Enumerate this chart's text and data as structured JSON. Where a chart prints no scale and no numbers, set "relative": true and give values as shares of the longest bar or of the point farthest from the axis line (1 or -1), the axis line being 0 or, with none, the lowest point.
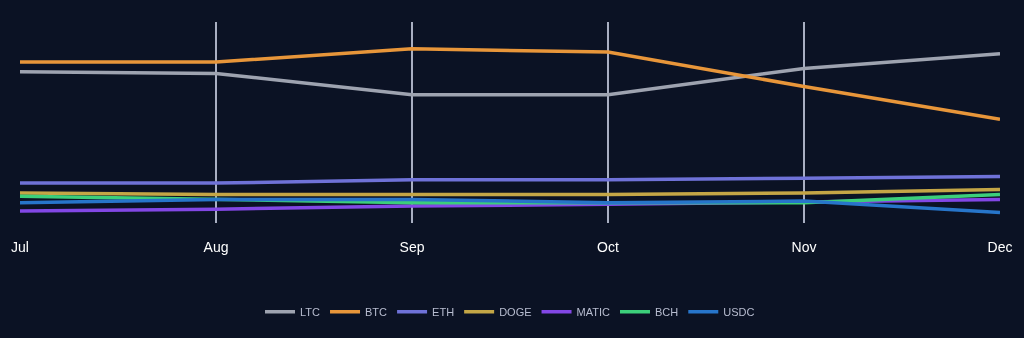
{
  "chart_data": {
    "type": "line",
    "relative": true,
    "categories": [
      "Jul",
      "Aug",
      "Sep",
      "Oct",
      "Nov",
      "Dec"
    ],
    "grid": "x",
    "legend": "bottom",
    "marker": "none",
    "line_style": "solid",
    "series": [
      {
        "name": "LTC",
        "color": "#9ea3b0",
        "values": [
          0.86,
          0.85,
          0.72,
          0.72,
          0.88,
          0.97
        ]
      },
      {
        "name": "BTC",
        "color": "#e8963a",
        "values": [
          0.92,
          0.92,
          1,
          0.98,
          0.77,
          0.57
        ]
      },
      {
        "name": "ETH",
        "color": "#6f72d8",
        "values": [
          0.18,
          0.18,
          0.2,
          0.2,
          0.21,
          0.22
        ]
      },
      {
        "name": "DOGE",
        "color": "#c4a646",
        "values": [
          0.12,
          0.11,
          0.11,
          0.11,
          0.12,
          0.14
        ]
      },
      {
        "name": "MATIC",
        "color": "#8247e5",
        "values": [
          0.01,
          0.02,
          0.04,
          0.05,
          null,
          0.08
        ]
      },
      {
        "name": "BCH",
        "color": "#3ccf7a",
        "values": [
          0.1,
          null,
          0.06,
          null,
          0.06,
          0.11
        ]
      },
      {
        "name": "USDC",
        "color": "#2775ca",
        "values": [
          0.06,
          0.08,
          0.08,
          0.06,
          0.07,
          0
        ]
      }
    ]
  }
}
